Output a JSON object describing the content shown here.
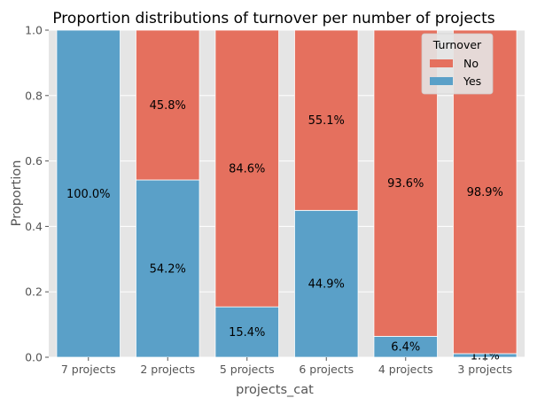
{
  "chart_data": {
    "type": "bar",
    "stacked": true,
    "normalized": true,
    "title": "Proportion distributions of turnover per number of projects",
    "xlabel": "projects_cat",
    "ylabel": "Proportion",
    "ylim": [
      0,
      1
    ],
    "yticks": [
      "0.0",
      "0.2",
      "0.4",
      "0.6",
      "0.8",
      "1.0"
    ],
    "categories": [
      "7 projects",
      "2 projects",
      "5 projects",
      "6 projects",
      "4 projects",
      "3 projects"
    ],
    "series": [
      {
        "name": "Yes",
        "color": "#5aa0c8",
        "values": [
          1.0,
          0.542,
          0.154,
          0.449,
          0.064,
          0.011
        ],
        "labels": [
          "100.0%",
          "54.2%",
          "15.4%",
          "44.9%",
          "6.4%",
          "1.1%"
        ]
      },
      {
        "name": "No",
        "color": "#e5705e",
        "values": [
          0.0,
          0.458,
          0.846,
          0.551,
          0.936,
          0.989
        ],
        "labels": [
          "",
          "45.8%",
          "84.6%",
          "55.1%",
          "93.6%",
          "98.9%"
        ]
      }
    ],
    "legend": {
      "title": "Turnover",
      "placement": "top-right",
      "order": [
        "No",
        "Yes"
      ]
    },
    "grid": true,
    "background": "#e5e5e5"
  }
}
